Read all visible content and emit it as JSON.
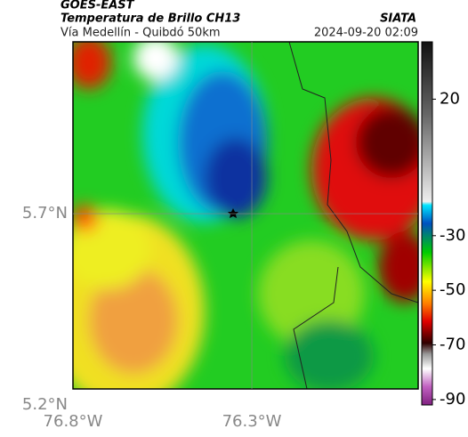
{
  "header": {
    "source": "GOES-EAST",
    "title": "Temperatura de Brillo CH13",
    "subtitle": "Vía Medellín - Quibdó 50km",
    "organization": "SIATA",
    "datetime": "2024-09-20 02:09"
  },
  "map": {
    "xlim": [
      -76.8,
      -75.835
    ],
    "ylim": [
      5.2,
      6.149
    ],
    "xticks": [
      {
        "value": -76.8,
        "label": "76.8°W"
      },
      {
        "value": -76.3,
        "label": "76.3°W"
      }
    ],
    "yticks": [
      {
        "value": 5.2,
        "label": "5.2°N"
      },
      {
        "value": 5.7,
        "label": "5.7°N"
      }
    ],
    "grid": true
  },
  "colorbar": {
    "clim": [
      -92,
      41
    ],
    "ticks": [
      20,
      -30,
      -50,
      -70,
      -90
    ]
  }
}
